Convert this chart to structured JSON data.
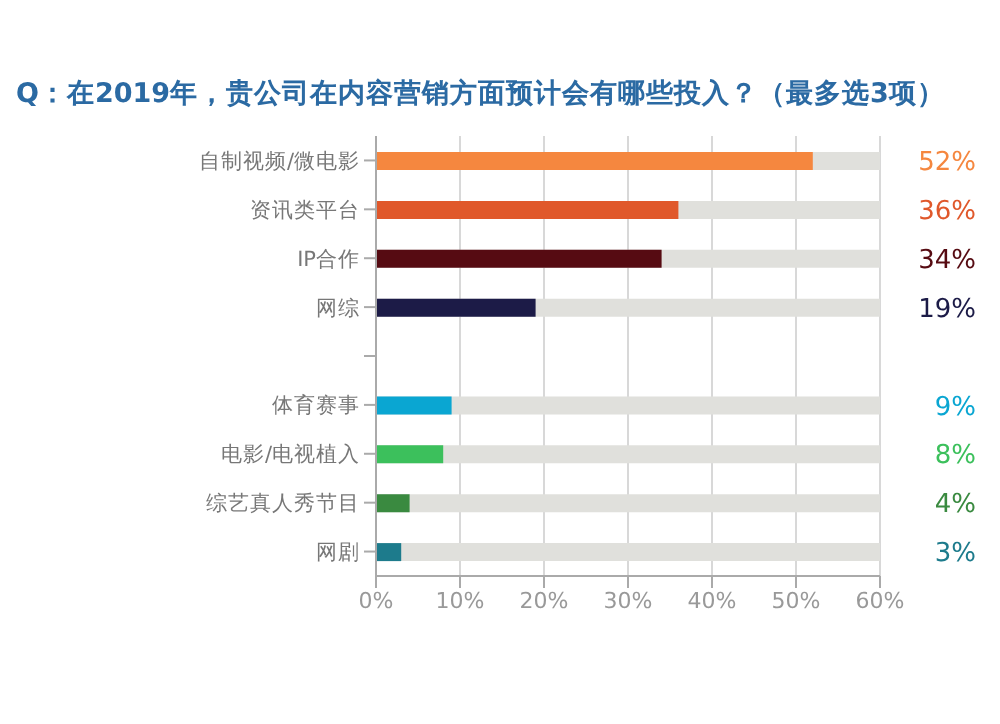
{
  "chart_data": {
    "type": "bar",
    "orientation": "horizontal",
    "title": "Q：在2019年，贵公司在内容营销方面预计会有哪些投入？（最多选3项）",
    "categories": [
      "自制视频/微电影",
      "资讯类平台",
      "IP合作",
      "网综",
      null,
      "体育赛事",
      "电影/电视植入",
      "综艺真人秀节目",
      "网剧"
    ],
    "values": [
      52,
      36,
      34,
      19,
      null,
      9,
      8,
      4,
      3
    ],
    "colors": [
      "#f5873f",
      "#e0582b",
      "#560b12",
      "#1c1b47",
      null,
      "#0aa6d2",
      "#3cc05c",
      "#3a8a40",
      "#1d7b8c"
    ],
    "value_labels": [
      "52%",
      "36%",
      "34%",
      "19%",
      null,
      "9%",
      "8%",
      "4%",
      "3%"
    ],
    "xlim": [
      0,
      60
    ],
    "xticks": [
      {
        "value": 0,
        "label": "0%"
      },
      {
        "value": 10,
        "label": "10%"
      },
      {
        "value": 20,
        "label": "20%"
      },
      {
        "value": 30,
        "label": "30%"
      },
      {
        "value": 40,
        "label": "40%"
      },
      {
        "value": 50,
        "label": "50%"
      },
      {
        "value": 60,
        "label": "60%"
      }
    ],
    "grid": "x"
  }
}
